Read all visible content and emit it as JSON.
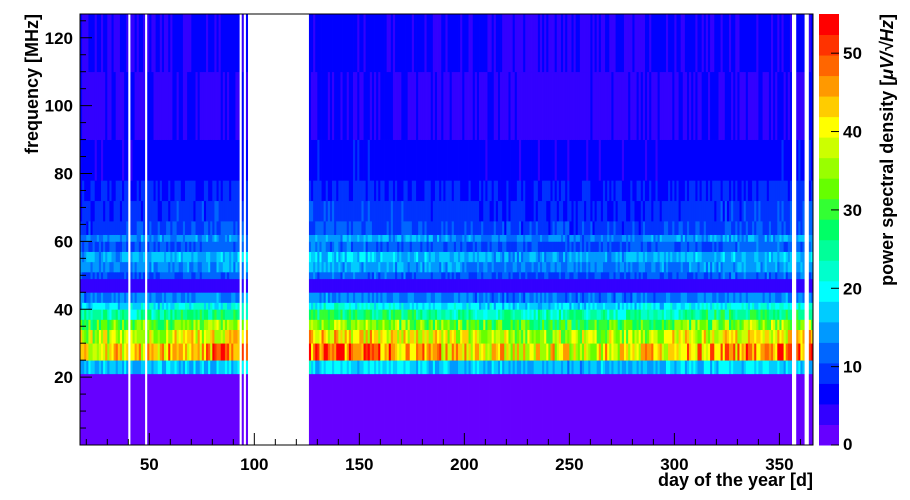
{
  "chart_data": {
    "type": "heatmap",
    "title": "",
    "xlabel": "day of the year [d]",
    "ylabel": "frequency [MHz]",
    "zlabel_prefix": "power spectral density [",
    "zlabel_unit": "μV/√Hz",
    "zlabel_suffix": "]",
    "xlim": [
      17,
      366
    ],
    "ylim": [
      0,
      127
    ],
    "zlim": [
      0,
      55
    ],
    "x_ticks": [
      "50",
      "100",
      "150",
      "200",
      "250",
      "300",
      "350"
    ],
    "y_ticks": [
      "20",
      "40",
      "60",
      "80",
      "100",
      "120"
    ],
    "z_ticks": [
      "0",
      "10",
      "20",
      "30",
      "40",
      "50"
    ],
    "gaps_days": [
      [
        40,
        41
      ],
      [
        48,
        49
      ],
      [
        93,
        94
      ],
      [
        95,
        96
      ],
      [
        97,
        126
      ],
      [
        356,
        358
      ],
      [
        362,
        364
      ]
    ],
    "frequency_bands": [
      {
        "f_low": 0,
        "f_high": 21,
        "psd": 1.0
      },
      {
        "f_low": 21,
        "f_high": 25,
        "psd": 17
      },
      {
        "f_low": 25,
        "f_high": 30,
        "psd": 44
      },
      {
        "f_low": 30,
        "f_high": 34,
        "psd": 39
      },
      {
        "f_low": 34,
        "f_high": 37,
        "psd": 33
      },
      {
        "f_low": 37,
        "f_high": 40,
        "psd": 25
      },
      {
        "f_low": 40,
        "f_high": 42,
        "psd": 19
      },
      {
        "f_low": 42,
        "f_high": 45,
        "psd": 13
      },
      {
        "f_low": 45,
        "f_high": 49,
        "psd": 4
      },
      {
        "f_low": 49,
        "f_high": 51,
        "psd": 11
      },
      {
        "f_low": 51,
        "f_high": 54,
        "psd": 14
      },
      {
        "f_low": 54,
        "f_high": 57,
        "psd": 16
      },
      {
        "f_low": 57,
        "f_high": 60,
        "psd": 11
      },
      {
        "f_low": 60,
        "f_high": 62,
        "psd": 14
      },
      {
        "f_low": 62,
        "f_high": 66,
        "psd": 10
      },
      {
        "f_low": 66,
        "f_high": 72,
        "psd": 9
      },
      {
        "f_low": 72,
        "f_high": 78,
        "psd": 8
      },
      {
        "f_low": 78,
        "f_high": 90,
        "psd": 6.5
      },
      {
        "f_low": 90,
        "f_high": 110,
        "psd": 5
      },
      {
        "f_low": 110,
        "f_high": 127,
        "psd": 5.5
      }
    ],
    "colormap": [
      "#6600ff",
      "#3300ff",
      "#0000ff",
      "#0033ff",
      "#0066ff",
      "#0099ff",
      "#00ccff",
      "#00ffff",
      "#00ffcc",
      "#00ff99",
      "#00ff66",
      "#33ff33",
      "#66ff00",
      "#99ff00",
      "#ccff00",
      "#ffff00",
      "#ffcc00",
      "#ff9900",
      "#ff6600",
      "#ff3300",
      "#ff0000"
    ],
    "grid": false,
    "legend": "colorbar-right"
  }
}
